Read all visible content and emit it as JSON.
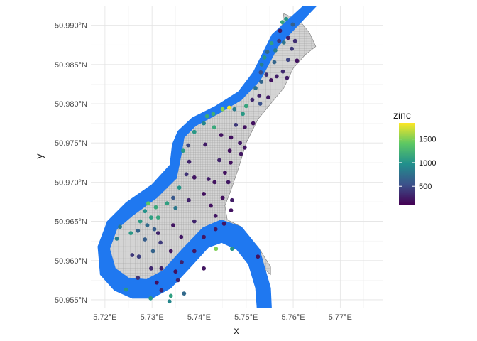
{
  "chart_data": {
    "type": "scatter",
    "title": "",
    "xlabel": "x",
    "ylabel": "y",
    "xlim": [
      5.717,
      5.779
    ],
    "ylim": [
      50.954,
      50.9925
    ],
    "x_ticks": [
      {
        "value": 5.72,
        "label": "5.72°E"
      },
      {
        "value": 5.73,
        "label": "5.73°E"
      },
      {
        "value": 5.74,
        "label": "5.74°E"
      },
      {
        "value": 5.75,
        "label": "5.75°E"
      },
      {
        "value": 5.76,
        "label": "5.76°E"
      },
      {
        "value": 5.77,
        "label": "5.77°E"
      }
    ],
    "y_ticks": [
      {
        "value": 50.955,
        "label": "50.955°N"
      },
      {
        "value": 50.96,
        "label": "50.960°N"
      },
      {
        "value": 50.965,
        "label": "50.965°N"
      },
      {
        "value": 50.97,
        "label": "50.970°N"
      },
      {
        "value": 50.975,
        "label": "50.975°N"
      },
      {
        "value": 50.98,
        "label": "50.980°N"
      },
      {
        "value": 50.985,
        "label": "50.985°N"
      },
      {
        "value": 50.99,
        "label": "50.990°N"
      }
    ],
    "grid": true,
    "legend": {
      "title": "zinc",
      "placement": "right",
      "range": [
        113,
        1839
      ],
      "ticks": [
        {
          "value": 500,
          "label": "500"
        },
        {
          "value": 1000,
          "label": "1000"
        },
        {
          "value": 1500,
          "label": "1500"
        }
      ],
      "colormap": [
        "#440154",
        "#3b528b",
        "#21908c",
        "#5dc863",
        "#fde725"
      ]
    },
    "river_color": "#1f78f0",
    "grid_cell_color": "#d9d9d9",
    "river_outline": [
      [
        5.7622,
        50.9925
      ],
      [
        5.7555,
        50.9888
      ],
      [
        5.7515,
        50.984
      ],
      [
        5.7483,
        50.9815
      ],
      [
        5.7435,
        50.9797
      ],
      [
        5.7385,
        50.9782
      ],
      [
        5.7355,
        50.9765
      ],
      [
        5.7343,
        50.9748
      ],
      [
        5.7338,
        50.9722
      ],
      [
        5.73,
        50.9697
      ],
      [
        5.7245,
        50.9674
      ],
      [
        5.7205,
        50.965
      ],
      [
        5.7185,
        50.9618
      ],
      [
        5.719,
        50.9582
      ],
      [
        5.722,
        50.9562
      ],
      [
        5.7258,
        50.9552
      ],
      [
        5.73,
        50.9552
      ],
      [
        5.734,
        50.9565
      ],
      [
        5.7382,
        50.9592
      ],
      [
        5.742,
        50.9617
      ],
      [
        5.7448,
        50.9623
      ],
      [
        5.748,
        50.9614
      ],
      [
        5.7505,
        50.9595
      ],
      [
        5.752,
        50.9565
      ],
      [
        5.7525,
        50.9525
      ],
      [
        5.7555,
        50.9525
      ],
      [
        5.7552,
        50.9565
      ],
      [
        5.7528,
        50.9615
      ],
      [
        5.749,
        50.9643
      ],
      [
        5.7447,
        50.9652
      ],
      [
        5.7408,
        50.9642
      ],
      [
        5.7365,
        50.9615
      ],
      [
        5.7323,
        50.9587
      ],
      [
        5.7288,
        50.9576
      ],
      [
        5.725,
        50.9578
      ],
      [
        5.7222,
        50.959
      ],
      [
        5.721,
        50.9615
      ],
      [
        5.7225,
        50.964
      ],
      [
        5.7258,
        50.9657
      ],
      [
        5.731,
        50.968
      ],
      [
        5.7352,
        50.9705
      ],
      [
        5.7362,
        50.9735
      ],
      [
        5.7368,
        50.9757
      ],
      [
        5.7393,
        50.9772
      ],
      [
        5.744,
        50.9787
      ],
      [
        5.749,
        50.9805
      ],
      [
        5.753,
        50.983
      ],
      [
        5.7568,
        50.9873
      ],
      [
        5.765,
        50.9925
      ]
    ],
    "grid_region": [
      [
        5.758,
        50.9915
      ],
      [
        5.7615,
        50.9905
      ],
      [
        5.7635,
        50.989
      ],
      [
        5.7648,
        50.9873
      ],
      [
        5.7625,
        50.9862
      ],
      [
        5.76,
        50.9845
      ],
      [
        5.758,
        50.982
      ],
      [
        5.7555,
        50.9802
      ],
      [
        5.7525,
        50.978
      ],
      [
        5.75,
        50.975
      ],
      [
        5.7485,
        50.972
      ],
      [
        5.7468,
        50.969
      ],
      [
        5.7455,
        50.967
      ],
      [
        5.746,
        50.9652
      ],
      [
        5.749,
        50.9643
      ],
      [
        5.7528,
        50.9615
      ],
      [
        5.7552,
        50.9592
      ],
      [
        5.7552,
        50.9582
      ],
      [
        5.7528,
        50.9595
      ],
      [
        5.7505,
        50.9598
      ],
      [
        5.748,
        50.9614
      ],
      [
        5.7448,
        50.9623
      ],
      [
        5.742,
        50.9617
      ],
      [
        5.7382,
        50.9592
      ],
      [
        5.734,
        50.9565
      ],
      [
        5.73,
        50.9552
      ],
      [
        5.7258,
        50.9552
      ],
      [
        5.7235,
        50.9562
      ],
      [
        5.7225,
        50.958
      ],
      [
        5.7222,
        50.959
      ],
      [
        5.721,
        50.9615
      ],
      [
        5.7225,
        50.964
      ],
      [
        5.7258,
        50.9657
      ],
      [
        5.731,
        50.968
      ],
      [
        5.7352,
        50.9705
      ],
      [
        5.7362,
        50.9735
      ],
      [
        5.7368,
        50.9757
      ],
      [
        5.7393,
        50.9772
      ],
      [
        5.744,
        50.9787
      ],
      [
        5.749,
        50.9805
      ],
      [
        5.753,
        50.983
      ],
      [
        5.7568,
        50.9873
      ]
    ],
    "points": [
      [
        5.7585,
        50.9908,
        1022
      ],
      [
        5.7577,
        50.9904,
        1141
      ],
      [
        5.7599,
        50.9901,
        640
      ],
      [
        5.7572,
        50.9893,
        257
      ],
      [
        5.7589,
        50.9884,
        269
      ],
      [
        5.757,
        50.988,
        406
      ],
      [
        5.758,
        50.9878,
        781
      ],
      [
        5.7604,
        50.988,
        346
      ],
      [
        5.7597,
        50.987,
        406
      ],
      [
        5.7554,
        50.9877,
        1096
      ],
      [
        5.7562,
        50.9868,
        840
      ],
      [
        5.7545,
        50.9866,
        703
      ],
      [
        5.7539,
        50.9859,
        1022
      ],
      [
        5.756,
        50.9853,
        680
      ],
      [
        5.7589,
        50.9856,
        471
      ],
      [
        5.7608,
        50.9855,
        196
      ],
      [
        5.7578,
        50.9841,
        327
      ],
      [
        5.7533,
        50.985,
        861
      ],
      [
        5.7531,
        50.984,
        540
      ],
      [
        5.7543,
        50.9837,
        349
      ],
      [
        5.7565,
        50.9835,
        267
      ],
      [
        5.7587,
        50.9833,
        258
      ],
      [
        5.7553,
        50.983,
        201
      ],
      [
        5.7532,
        50.9828,
        680
      ],
      [
        5.752,
        50.982,
        765
      ],
      [
        5.7528,
        50.981,
        279
      ],
      [
        5.7547,
        50.9808,
        241
      ],
      [
        5.7513,
        50.9805,
        317
      ],
      [
        5.753,
        50.98,
        545
      ],
      [
        5.75,
        50.9797,
        1132
      ],
      [
        5.7493,
        50.9787,
        1045
      ],
      [
        5.7475,
        50.9793,
        840
      ],
      [
        5.7464,
        50.9795,
        1839
      ],
      [
        5.745,
        50.9793,
        1528
      ],
      [
        5.743,
        50.9787,
        1190
      ],
      [
        5.7417,
        50.9784,
        1160
      ],
      [
        5.741,
        50.9775,
        906
      ],
      [
        5.7432,
        50.977,
        1160
      ],
      [
        5.7478,
        50.9773,
        406
      ],
      [
        5.7497,
        50.977,
        210
      ],
      [
        5.7515,
        50.9775,
        198
      ],
      [
        5.739,
        50.9764,
        1038
      ],
      [
        5.7447,
        50.976,
        207
      ],
      [
        5.7468,
        50.9757,
        198
      ],
      [
        5.7487,
        50.975,
        246
      ],
      [
        5.7377,
        50.9747,
        471
      ],
      [
        5.7413,
        50.9748,
        252
      ],
      [
        5.7497,
        50.9744,
        228
      ],
      [
        5.7366,
        50.974,
        1050
      ],
      [
        5.7465,
        50.974,
        189
      ],
      [
        5.7489,
        50.9736,
        224
      ],
      [
        5.7379,
        50.9726,
        296
      ],
      [
        5.7443,
        50.9728,
        292
      ],
      [
        5.7467,
        50.9725,
        198
      ],
      [
        5.7455,
        50.9712,
        196
      ],
      [
        5.7373,
        50.971,
        375
      ],
      [
        5.739,
        50.9706,
        228
      ],
      [
        5.742,
        50.9704,
        261
      ],
      [
        5.7358,
        50.9693,
        1010
      ],
      [
        5.7433,
        50.97,
        203
      ],
      [
        5.7462,
        50.97,
        234
      ],
      [
        5.741,
        50.9685,
        190
      ],
      [
        5.7378,
        50.9677,
        282
      ],
      [
        5.745,
        50.968,
        185
      ],
      [
        5.747,
        50.9677,
        258
      ],
      [
        5.7345,
        50.968,
        585
      ],
      [
        5.7332,
        50.9673,
        1094
      ],
      [
        5.7425,
        50.967,
        196
      ],
      [
        5.735,
        50.9667,
        800
      ],
      [
        5.7435,
        50.9657,
        226
      ],
      [
        5.7468,
        50.9664,
        210
      ],
      [
        5.7292,
        50.9673,
        1383
      ],
      [
        5.7308,
        50.9668,
        1161
      ],
      [
        5.7285,
        50.9663,
        1000
      ],
      [
        5.7298,
        50.9655,
        1081
      ],
      [
        5.7313,
        50.9655,
        1135
      ],
      [
        5.7275,
        50.965,
        1055
      ],
      [
        5.729,
        50.9645,
        707
      ],
      [
        5.727,
        50.9638,
        665
      ],
      [
        5.7305,
        50.964,
        621
      ],
      [
        5.7255,
        50.9635,
        1040
      ],
      [
        5.7232,
        50.9643,
        833
      ],
      [
        5.7313,
        50.9635,
        300
      ],
      [
        5.7345,
        50.9645,
        217
      ],
      [
        5.739,
        50.965,
        297
      ],
      [
        5.7435,
        50.964,
        240
      ],
      [
        5.7453,
        50.9647,
        214
      ],
      [
        5.7285,
        50.9627,
        620
      ],
      [
        5.7318,
        50.9623,
        422
      ],
      [
        5.7362,
        50.963,
        232
      ],
      [
        5.741,
        50.963,
        225
      ],
      [
        5.7225,
        50.9628,
        855
      ],
      [
        5.7302,
        50.9612,
        660
      ],
      [
        5.734,
        50.9612,
        230
      ],
      [
        5.739,
        50.9612,
        229
      ],
      [
        5.7436,
        50.9615,
        1500
      ],
      [
        5.747,
        50.9615,
        1013
      ],
      [
        5.7525,
        50.9605,
        203
      ],
      [
        5.7258,
        50.9607,
        400
      ],
      [
        5.7272,
        50.9605,
        445
      ],
      [
        5.7363,
        50.9598,
        290
      ],
      [
        5.735,
        50.9586,
        190
      ],
      [
        5.7298,
        50.959,
        322
      ],
      [
        5.732,
        50.959,
        271
      ],
      [
        5.741,
        50.959,
        218
      ],
      [
        5.727,
        50.9578,
        370
      ],
      [
        5.731,
        50.9572,
        180
      ],
      [
        5.7355,
        50.9575,
        290
      ],
      [
        5.7245,
        50.9563,
        1033
      ],
      [
        5.732,
        50.9562,
        300
      ],
      [
        5.734,
        50.9555,
        1088
      ],
      [
        5.7368,
        50.9558,
        703
      ],
      [
        5.7297,
        50.9552,
        1038
      ],
      [
        5.7337,
        50.9548,
        906
      ]
    ]
  }
}
